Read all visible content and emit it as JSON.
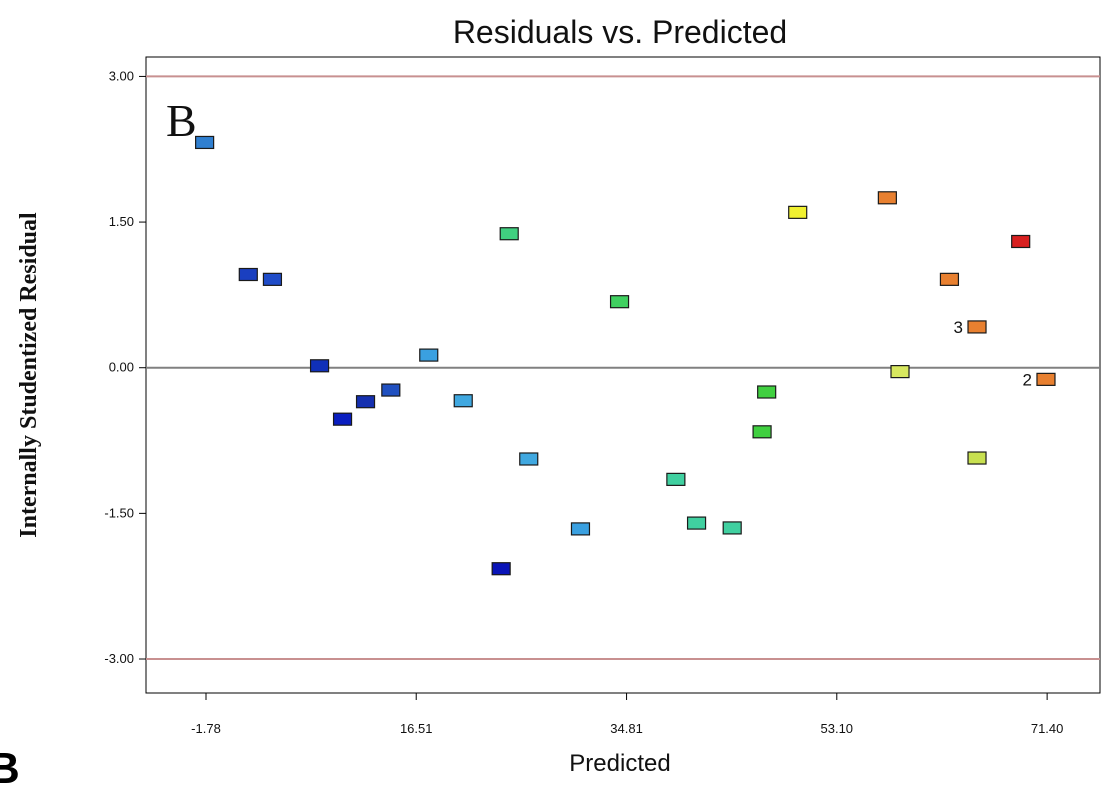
{
  "chart_data": {
    "type": "scatter",
    "title": "Residuals vs. Predicted",
    "panel_label": "B",
    "stray_label": "B",
    "xlabel": "Predicted",
    "ylabel": "Internally Studentized Residual",
    "xlim": [
      -7.0,
      76.0
    ],
    "ylim": [
      -3.35,
      3.2
    ],
    "x_ticks": [
      -1.78,
      16.51,
      34.81,
      53.1,
      71.4
    ],
    "x_tick_labels": [
      "-1.78",
      "16.51",
      "34.81",
      "53.10",
      "71.40"
    ],
    "y_ticks": [
      3.0,
      1.5,
      0.0,
      -1.5,
      -3.0
    ],
    "y_tick_labels": [
      "3.00",
      "1.50",
      "0.00",
      "-1.50",
      "-3.00"
    ],
    "reference_lines": [
      3.0,
      -3.0
    ],
    "zero_line": 0.0,
    "grid": false,
    "colors": {
      "limit_line": "#c89090",
      "zero_line": "#808080",
      "axis": "#000000"
    },
    "points": [
      {
        "x": -1.9,
        "y": 2.32,
        "color": "#2f7fd0"
      },
      {
        "x": 1.9,
        "y": 0.96,
        "color": "#1a3fc0"
      },
      {
        "x": 4.0,
        "y": 0.91,
        "color": "#1f4cc8"
      },
      {
        "x": 8.1,
        "y": 0.02,
        "color": "#1030b8"
      },
      {
        "x": 10.1,
        "y": -0.53,
        "color": "#0a1ec0"
      },
      {
        "x": 12.1,
        "y": -0.35,
        "color": "#1530b0"
      },
      {
        "x": 14.3,
        "y": -0.23,
        "color": "#2050c0"
      },
      {
        "x": 17.6,
        "y": 0.13,
        "color": "#3aa0e0"
      },
      {
        "x": 20.6,
        "y": -0.34,
        "color": "#40a8e0"
      },
      {
        "x": 24.6,
        "y": 1.38,
        "color": "#40d080"
      },
      {
        "x": 23.9,
        "y": -2.07,
        "color": "#0a14b8"
      },
      {
        "x": 26.3,
        "y": -0.94,
        "color": "#40a8e0"
      },
      {
        "x": 30.8,
        "y": -1.66,
        "color": "#3aa0e0"
      },
      {
        "x": 34.2,
        "y": 0.68,
        "color": "#40d060"
      },
      {
        "x": 39.1,
        "y": -1.15,
        "color": "#40d0a0"
      },
      {
        "x": 40.9,
        "y": -1.6,
        "color": "#40d0a0"
      },
      {
        "x": 44.0,
        "y": -1.65,
        "color": "#40d0a0"
      },
      {
        "x": 47.0,
        "y": -0.25,
        "color": "#40d040"
      },
      {
        "x": 46.6,
        "y": -0.66,
        "color": "#40d040"
      },
      {
        "x": 49.7,
        "y": 1.6,
        "color": "#f0f030"
      },
      {
        "x": 57.5,
        "y": 1.75,
        "color": "#e88030"
      },
      {
        "x": 58.6,
        "y": -0.04,
        "color": "#d8e860"
      },
      {
        "x": 62.9,
        "y": 0.91,
        "color": "#e88030"
      },
      {
        "x": 65.3,
        "y": 0.42,
        "color": "#e88030",
        "label": "3"
      },
      {
        "x": 65.3,
        "y": -0.93,
        "color": "#c8e050"
      },
      {
        "x": 69.1,
        "y": 1.3,
        "color": "#d82020"
      },
      {
        "x": 71.3,
        "y": -0.12,
        "color": "#e88030",
        "label": "2"
      }
    ]
  }
}
